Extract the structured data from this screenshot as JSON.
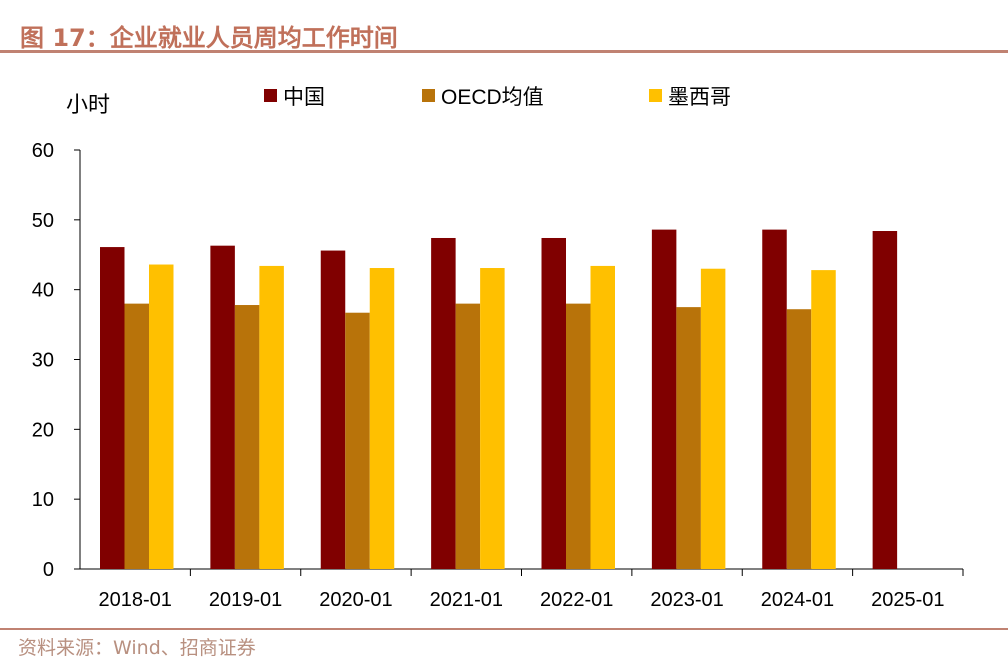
{
  "title": "图 17：企业就业人员周均工作时间",
  "source": "资料来源：Wind、招商证券",
  "chart_data": {
    "type": "bar",
    "title": "企业就业人员周均工作时间",
    "ylabel": "小时",
    "xlabel": "",
    "ylim": [
      0,
      60
    ],
    "yticks": [
      0,
      10,
      20,
      30,
      40,
      50,
      60
    ],
    "legend_position": "top",
    "categories": [
      "2018-01",
      "2019-01",
      "2020-01",
      "2021-01",
      "2022-01",
      "2023-01",
      "2024-01",
      "2025-01"
    ],
    "series": [
      {
        "name": "中国",
        "color": "#800000",
        "values": [
          46.1,
          46.3,
          45.6,
          47.4,
          47.4,
          48.6,
          48.6,
          48.4
        ]
      },
      {
        "name": "OECD均值",
        "color": "#b8730a",
        "values": [
          38.0,
          37.8,
          36.7,
          38.0,
          38.0,
          37.5,
          37.2,
          null
        ]
      },
      {
        "name": "墨西哥",
        "color": "#ffc000",
        "values": [
          43.6,
          43.4,
          43.1,
          43.1,
          43.4,
          43.0,
          42.8,
          null
        ]
      }
    ]
  }
}
